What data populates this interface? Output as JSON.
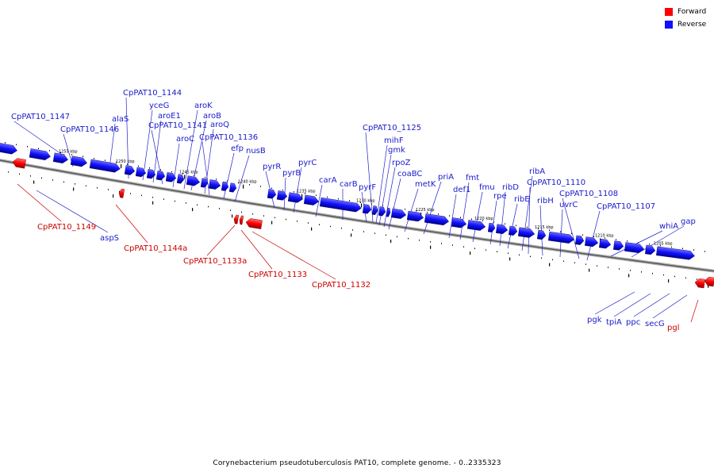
{
  "legend": {
    "forward": {
      "label": "Forward",
      "color": "#ff0000"
    },
    "reverse": {
      "label": "Reverse",
      "color": "#1010ff"
    }
  },
  "caption": "Corynebacterium pseudotuberculosis PAT10, complete genome. - 0..2335323",
  "kbp_marks": [
    "1255 kbp",
    "1250 kbp",
    "1245 kbp",
    "1240 kbp",
    "1235 kbp",
    "1230 kbp",
    "1225 kbp",
    "1220 kbp",
    "1215 kbp",
    "1210 kbp",
    "1205 kbp"
  ],
  "reverse_genes": [
    "CpPAT10_1147",
    "CpPAT10_1146",
    "alaS",
    "CpPAT10_1144",
    "yceG",
    "aroE1",
    "aroK",
    "CpPAT10_1141",
    "aroB",
    "aroC",
    "aroQ",
    "CpPAT10_1136",
    "efp",
    "nusB",
    "pyrR",
    "pyrB",
    "pyrC",
    "carA",
    "carB",
    "pyrF",
    "CpPAT10_1125",
    "mihF",
    "gmk",
    "rpoZ",
    "coaBC",
    "metK",
    "priA",
    "def1",
    "fmt",
    "fmu",
    "rpe",
    "ribD",
    "ribE",
    "ribA",
    "CpPAT10_1110",
    "ribH",
    "uvrC",
    "CpPAT10_1108",
    "CpPAT10_1107",
    "whiA",
    "gap",
    "aspS",
    "pgk",
    "tpiA",
    "ppc",
    "secG"
  ],
  "forward_genes": [
    "CpPAT10_1149",
    "CpPAT10_1144a",
    "CpPAT10_1133a",
    "CpPAT10_1133",
    "CpPAT10_1132",
    "pgl"
  ]
}
